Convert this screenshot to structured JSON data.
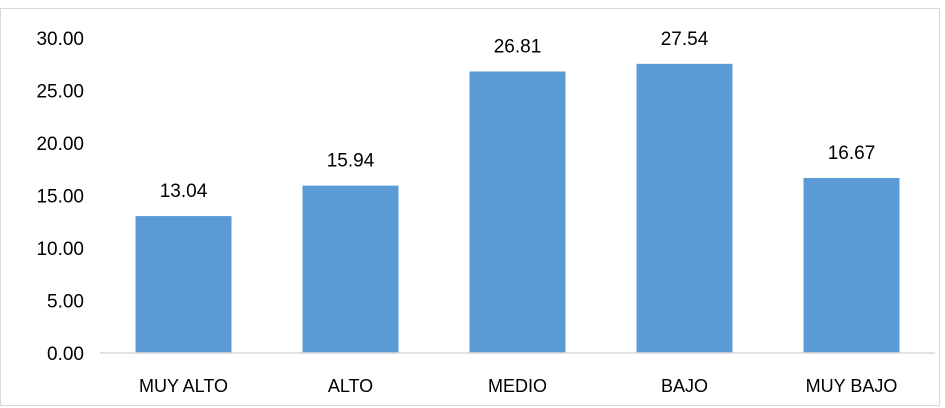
{
  "chart_data": {
    "type": "bar",
    "title": "",
    "xlabel": "",
    "ylabel": "",
    "categories": [
      "MUY ALTO",
      "ALTO",
      "MEDIO",
      "BAJO",
      "MUY BAJO"
    ],
    "values": [
      13.04,
      15.94,
      26.81,
      27.54,
      16.67
    ],
    "value_labels": [
      "13.04",
      "15.94",
      "26.81",
      "27.54",
      "16.67"
    ],
    "ylim": [
      0,
      30
    ],
    "yticks": [
      0,
      5,
      10,
      15,
      20,
      25,
      30
    ],
    "ytick_labels": [
      "0.00",
      "5.00",
      "10.00",
      "15.00",
      "20.00",
      "25.00",
      "30.00"
    ],
    "grid": false,
    "legend": "none",
    "bar_color": "#5b9bd5",
    "axis_color": "#d9d9d9"
  }
}
